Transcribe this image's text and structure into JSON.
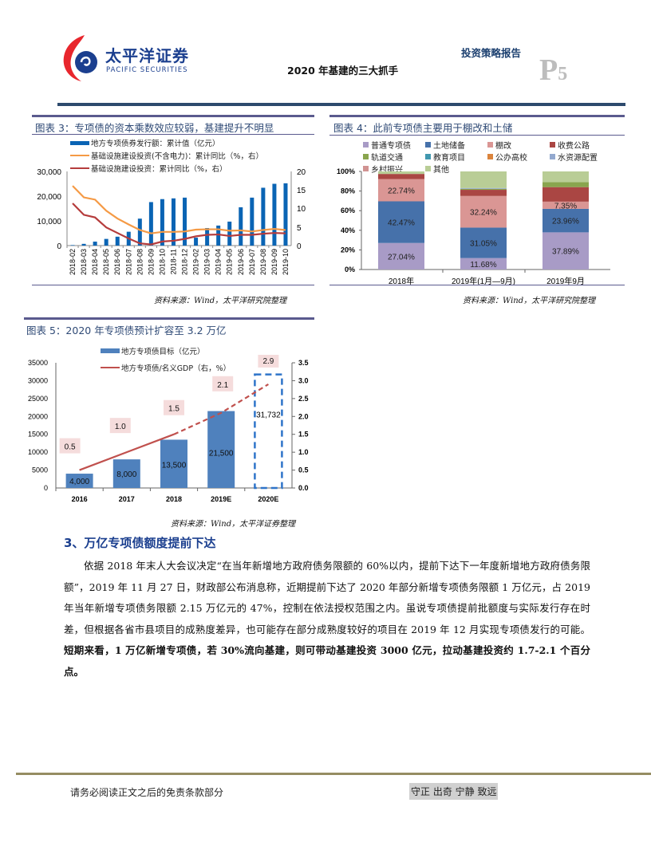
{
  "header": {
    "logo_cn": "太平洋证券",
    "logo_en": "PACIFIC SECURITIES",
    "doc_title": "2020 年基建的三大抓手",
    "report_type": "投资策略报告",
    "page_letter": "P",
    "page_number": "5"
  },
  "figure3": {
    "title": "图表 3：专项债的资本乘数效应较弱，基建提升不明显",
    "source": "资料来源：Wind，太平洋研究院整理"
  },
  "figure4": {
    "title": "图表 4：此前专项债主要用于棚改和土储",
    "source": "资料来源：Wind，太平洋研究院整理"
  },
  "figure5": {
    "title": "图表 5：2020 年专项债预计扩容至 3.2 万亿",
    "source": "资料来源：Wind，太平洋证券整理"
  },
  "section": {
    "heading": "3、万亿专项债额度提前下达",
    "paragraph_normal": "依据 2018 年末人大会议决定“在当年新增地方政府债务限额的 60%以内，提前下达下一年度新增地方政府债务限额”，2019 年 11 月 27 日，财政部公布消息称，近期提前下达了 2020 年部分新增专项债务限额 1 万亿元，占 2019 年当年新增专项债务限额 2.15 万亿元的 47%，控制在依法授权范围之内。虽说专项债提前批额度与实际发行存在时差，但根据各省市县项目的成熟度差异，也可能存在部分成熟度较好的项目在 2019 年 12 月实现专项债发行的可能。",
    "paragraph_bold": "短期来看，1 万亿新增专项债，若 30%流向基建，则可带动基建投资 3000 亿元，拉动基建投资约 1.7-2.1 个百分点。"
  },
  "footer": {
    "disclaimer": "请务必阅读正文之后的免责条款部分",
    "motto": "守正 出奇 宁静 致远"
  },
  "chart_data": [
    {
      "type": "bar+line",
      "title": "图表 3：专项债的资本乘数效应较弱，基建提升不明显",
      "categories": [
        "2018-02",
        "2018-03",
        "2018-04",
        "2018-05",
        "2018-06",
        "2018-07",
        "2018-08",
        "2018-09",
        "2018-10",
        "2018-11",
        "2018-12",
        "2019-02",
        "2019-03",
        "2019-04",
        "2019-05",
        "2019-06",
        "2019-07",
        "2019-08",
        "2019-09",
        "2019-10"
      ],
      "series": [
        {
          "name": "地方专项债券发行额：累计值（亿元）",
          "kind": "bar",
          "axis": "left",
          "color": "#0a64b4",
          "values": [
            200,
            700,
            1600,
            2700,
            3600,
            5600,
            10900,
            17600,
            18800,
            19100,
            19400,
            3200,
            7100,
            8100,
            9700,
            15500,
            19400,
            23400,
            25000,
            25200
          ]
        },
        {
          "name": "基础设施建设投资(不含电力)：累计同比（%，右）",
          "kind": "line",
          "axis": "right",
          "color": "#f59a45",
          "values": [
            16.1,
            13.0,
            12.4,
            9.4,
            7.3,
            5.7,
            4.2,
            3.3,
            3.7,
            3.7,
            3.8,
            4.3,
            4.4,
            4.4,
            4.0,
            4.1,
            3.8,
            4.2,
            4.5,
            4.2
          ]
        },
        {
          "name": "基础设施建设投资：累计同比（%，右）",
          "kind": "line",
          "axis": "right",
          "color": "#b53c3c",
          "values": [
            11.4,
            8.3,
            7.6,
            4.9,
            3.4,
            1.9,
            0.6,
            0.3,
            1.1,
            1.3,
            1.8,
            2.5,
            2.9,
            3.0,
            2.6,
            2.9,
            2.9,
            3.2,
            3.4,
            3.3
          ]
        }
      ],
      "ylim_left": [
        0,
        30000
      ],
      "yticks_left": [
        "0",
        "10,000",
        "20,000",
        "30,000"
      ],
      "ylim_right": [
        0,
        20
      ],
      "yticks_right": [
        "0",
        "5",
        "10",
        "15",
        "20"
      ],
      "legend_position": "top",
      "grid": false
    },
    {
      "type": "bar",
      "stacked": true,
      "percent": true,
      "title": "图表 4：此前专项债主要用于棚改和土储",
      "categories": [
        "2018年",
        "2019年(1月—9月)",
        "2019年9月"
      ],
      "series": [
        {
          "name": "普通专项债",
          "color": "#a89bc6",
          "values": [
            27.04,
            11.68,
            37.89
          ]
        },
        {
          "name": "土地储备",
          "color": "#4671aa",
          "values": [
            42.47,
            31.05,
            23.96
          ]
        },
        {
          "name": "棚改",
          "color": "#da9694",
          "values": [
            22.74,
            32.24,
            7.35
          ]
        },
        {
          "name": "收费公路",
          "color": "#aa4643",
          "values": [
            5.2,
            6.3,
            14.8
          ]
        },
        {
          "name": "轨道交通",
          "color": "#89a54e",
          "values": [
            0,
            1.0,
            5.0
          ]
        },
        {
          "name": "教育项目",
          "color": "#4198af",
          "values": [
            0,
            0,
            0
          ]
        },
        {
          "name": "公办高校",
          "color": "#db843d",
          "values": [
            0,
            0,
            0
          ]
        },
        {
          "name": "水资源配置",
          "color": "#93a9cf",
          "values": [
            0,
            0.8,
            0
          ]
        },
        {
          "name": "乡村振兴",
          "color": "#d19392",
          "values": [
            0,
            0,
            0
          ]
        },
        {
          "name": "其他",
          "color": "#b9cd96",
          "values": [
            2.55,
            16.93,
            11.0
          ]
        }
      ],
      "data_labels": {
        "2018年": [
          "27.04%",
          "42.47%",
          "22.74%"
        ],
        "2019年(1月—9月)": [
          "11.68%",
          "31.05%",
          "32.24%"
        ],
        "2019年9月": [
          "37.89%",
          "23.96%",
          "7.35%"
        ]
      },
      "ylim": [
        0,
        100
      ],
      "yticks": [
        "0%",
        "20%",
        "40%",
        "60%",
        "80%",
        "100%"
      ],
      "legend_position": "top"
    },
    {
      "type": "bar+line",
      "title": "图表 5：2020 年专项债预计扩容至 3.2 万亿",
      "categories": [
        "2016",
        "2017",
        "2018",
        "2019E",
        "2020E"
      ],
      "series": [
        {
          "name": "地方专项债目标（亿元）",
          "kind": "bar",
          "axis": "left",
          "color": "#4f81bd",
          "values": [
            4000,
            8000,
            13500,
            21500,
            31732
          ],
          "labels": [
            "4,000",
            "8,000",
            "13,500",
            "21,500",
            "31,732"
          ],
          "note": "2020E bar drawn as dashed outline"
        },
        {
          "name": "地方专项债/名义GDP（右，%）",
          "kind": "line",
          "axis": "right",
          "color": "#c0504d",
          "values": [
            0.5,
            1.0,
            1.5,
            2.1,
            2.9
          ],
          "note": "solid to 2018, dashed for 2019E-2020E"
        }
      ],
      "ylim_left": [
        0,
        35000
      ],
      "yticks_left": [
        "0",
        "5000",
        "10000",
        "15000",
        "20000",
        "25000",
        "30000",
        "35000"
      ],
      "ylim_right": [
        0,
        3.5
      ],
      "yticks_right": [
        "0.0",
        "0.5",
        "1.0",
        "1.5",
        "2.0",
        "2.5",
        "3.0",
        "3.5"
      ],
      "legend_position": "top",
      "grid": false
    }
  ]
}
